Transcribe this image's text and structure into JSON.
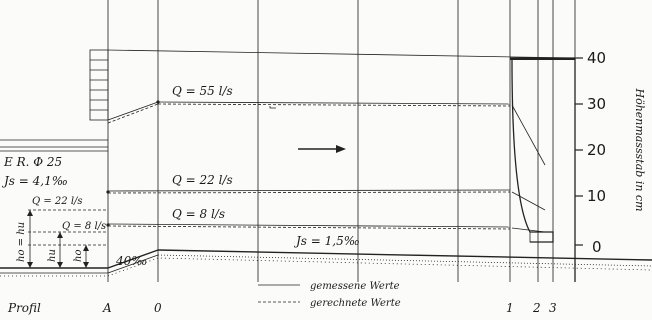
{
  "flows": {
    "q55": "Q = 55 l/s",
    "q22": "Q = 22 l/s",
    "q8": "Q = 8 l/s"
  },
  "left": {
    "er": "E R. Φ 25",
    "js_left": "Js = 4,1‰",
    "q22_small": "Q = 22 l/s",
    "q8_small": "Q = 8 l/s",
    "hohu": "ho = hu",
    "hu": "hu",
    "ho": "ho"
  },
  "slope": {
    "ramp": "40‰",
    "js_right": "Js = 1,5‰"
  },
  "axis": {
    "label": "Höhenmassstab in cm",
    "ticks": [
      "40",
      "30",
      "20",
      "10",
      "0"
    ]
  },
  "legend": {
    "measured": "gemessene Werte",
    "computed": "gerechnete Werte"
  },
  "profile": {
    "label": "Profil",
    "sections": [
      "A",
      "0",
      "1",
      "2",
      "3"
    ]
  }
}
